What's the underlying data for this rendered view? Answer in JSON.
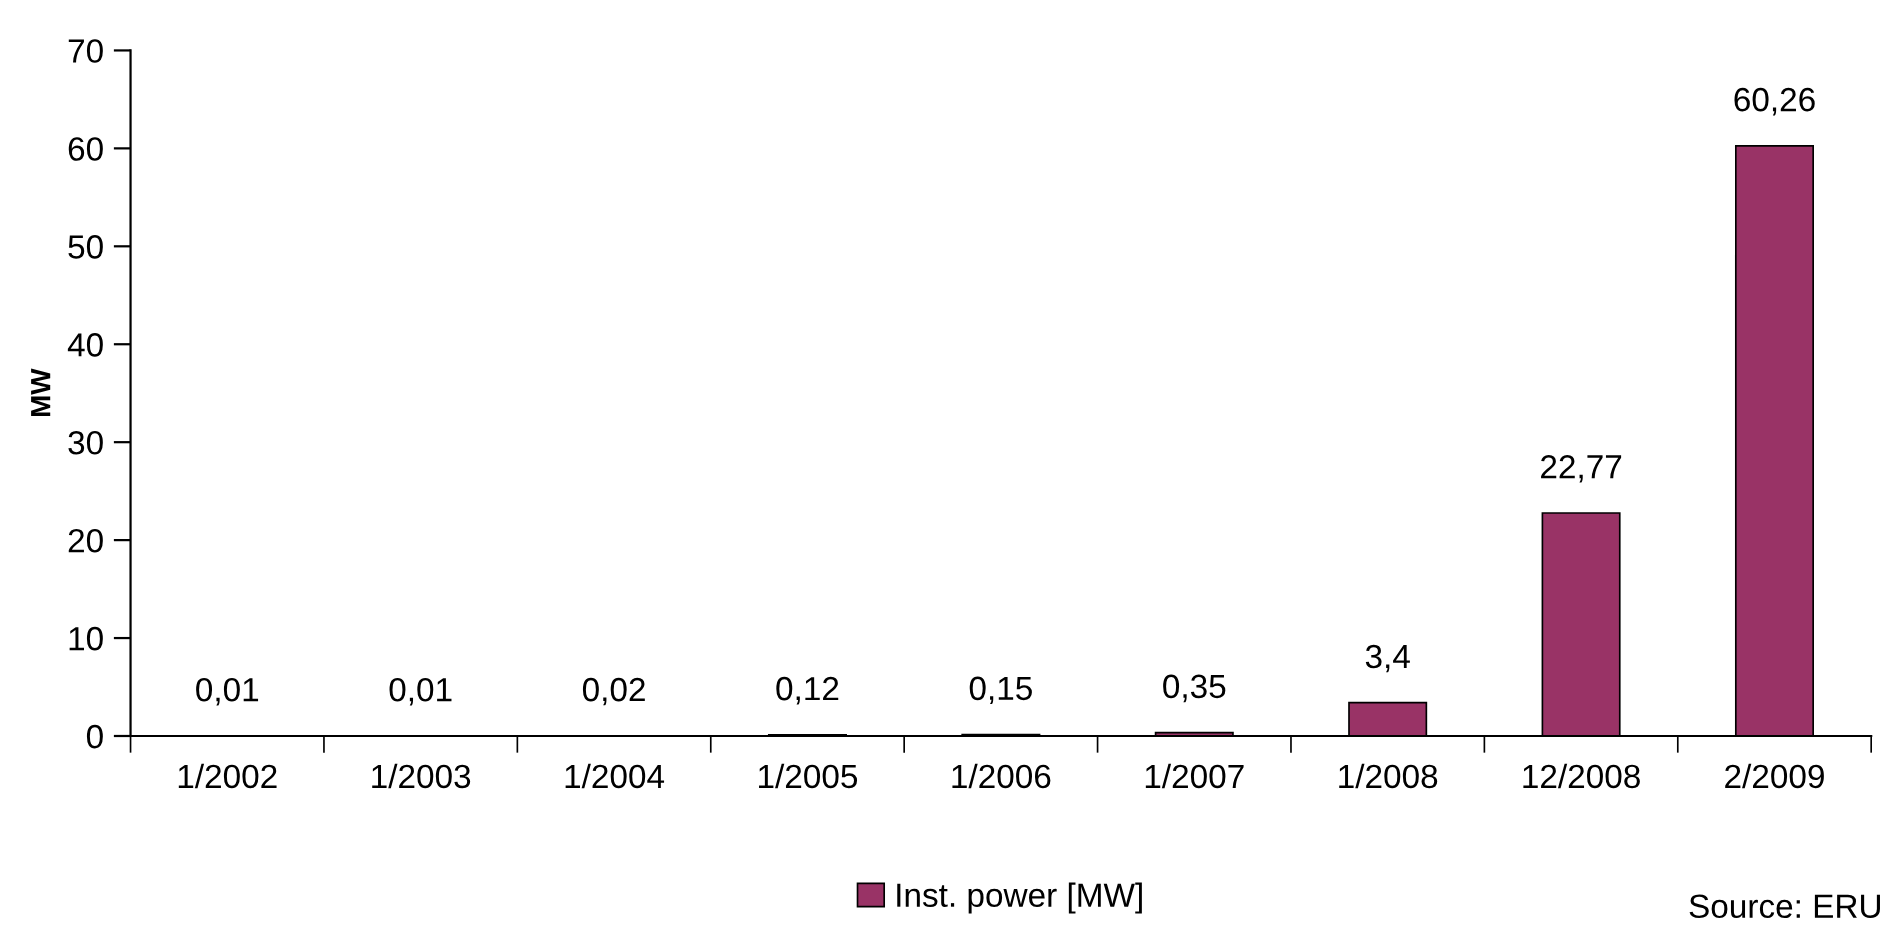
{
  "chart_data": {
    "type": "bar",
    "ylabel": "MW",
    "categories": [
      "1/2002",
      "1/2003",
      "1/2004",
      "1/2005",
      "1/2006",
      "1/2007",
      "1/2008",
      "12/2008",
      "2/2009"
    ],
    "series": [
      {
        "name": "Inst. power [MW]",
        "color": "#993366",
        "values": [
          0.01,
          0.01,
          0.02,
          0.12,
          0.15,
          0.35,
          3.4,
          22.77,
          60.26
        ],
        "value_labels": [
          "0,01",
          "0,01",
          "0,02",
          "0,12",
          "0,15",
          "0,35",
          "3,4",
          "22,77",
          "60,26"
        ]
      }
    ],
    "ylim": [
      0,
      70
    ],
    "yticks": [
      0,
      10,
      20,
      30,
      40,
      50,
      60,
      70
    ],
    "grid": false,
    "legend": "bottom",
    "annotations": [
      "Source: ERU"
    ]
  }
}
